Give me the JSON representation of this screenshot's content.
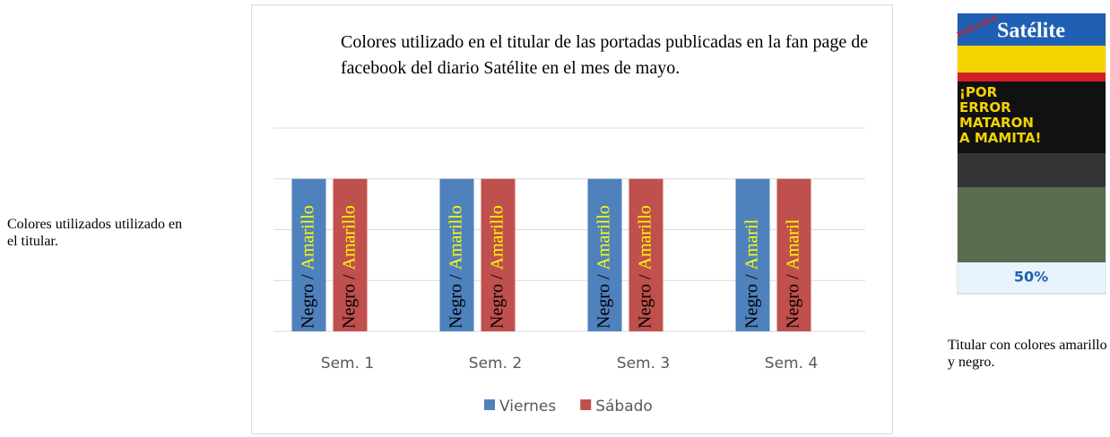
{
  "left_caption": "Colores utilizados utilizado en el titular.",
  "chart_data": {
    "type": "bar",
    "title": "Colores utilizado en el titular de las portadas publicadas en la fan page de facebook del diario Satélite en el mes de mayo.",
    "categories": [
      "Sem. 1",
      "Sem. 2",
      "Sem. 3",
      "Sem. 4"
    ],
    "series": [
      {
        "name": "Viernes",
        "color": "#4f81bd",
        "values": [
          3,
          3,
          3,
          3
        ],
        "labels": [
          {
            "dark": "Negro /",
            "light": "Amarillo"
          },
          {
            "dark": "Negro /",
            "light": "Amarillo"
          },
          {
            "dark": "Negro /",
            "light": "Amarillo"
          },
          {
            "dark": "Negro /",
            "light": "Amaril"
          }
        ]
      },
      {
        "name": "Sábado",
        "color": "#c0504d",
        "values": [
          3,
          3,
          3,
          3
        ],
        "labels": [
          {
            "dark": "Negro /",
            "light": "Amarillo"
          },
          {
            "dark": "Negro /",
            "light": "Amarillo"
          },
          {
            "dark": "Negro /",
            "light": "Amarillo"
          },
          {
            "dark": "Negro /",
            "light": "Amaril"
          }
        ]
      }
    ],
    "ylim": [
      0,
      4
    ],
    "yticks": [
      0,
      1,
      2,
      3,
      4
    ],
    "grid": true,
    "legend": "bottom"
  },
  "newspaper": {
    "badge": "PORTADA",
    "masthead": "Satélite",
    "headline": "¡POR ERROR MATARON A MAMITA!",
    "promo": "50%"
  },
  "right_caption": "Titular con colores amarillo y negro."
}
